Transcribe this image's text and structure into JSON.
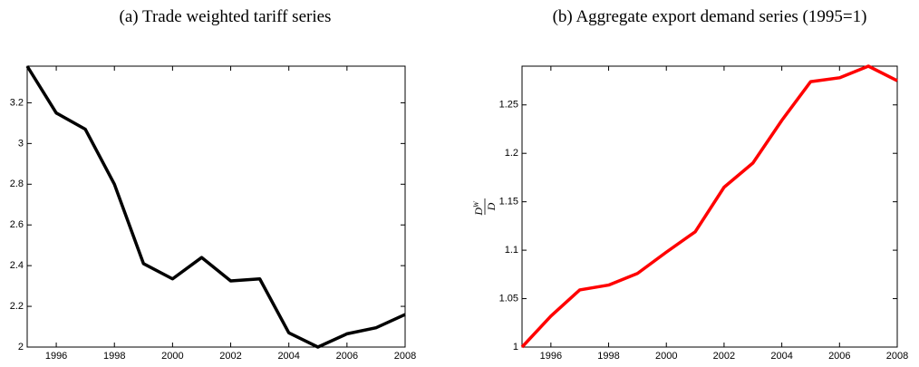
{
  "chart_data": [
    {
      "type": "line",
      "title": "(a) Trade weighted tariff series",
      "x": [
        1995,
        1996,
        1997,
        1998,
        1999,
        2000,
        2001,
        2002,
        2003,
        2004,
        2005,
        2006,
        2007,
        2008
      ],
      "series": [
        {
          "name": "Trade weighted tariff",
          "color": "#000000",
          "values": [
            3.38,
            3.15,
            3.07,
            2.8,
            2.41,
            2.335,
            2.44,
            2.325,
            2.335,
            2.07,
            2.0,
            2.065,
            2.095,
            2.16
          ]
        }
      ],
      "xlim": [
        1995,
        2008
      ],
      "xticks": [
        1996,
        1998,
        2000,
        2002,
        2004,
        2006,
        2008
      ],
      "ylim": [
        2,
        3.38
      ],
      "yticks": [
        2,
        2.2,
        2.4,
        2.6,
        2.8,
        3,
        3.2
      ],
      "grid": false
    },
    {
      "type": "line",
      "title": "(b) Aggregate export demand series (1995=1)",
      "ylabel_numerator": "D",
      "ylabel_superscript": "W",
      "ylabel_denominator": "D",
      "x": [
        1995,
        1996,
        1997,
        1998,
        1999,
        2000,
        2001,
        2002,
        2003,
        2004,
        2005,
        2006,
        2007,
        2008
      ],
      "series": [
        {
          "name": "Aggregate export demand",
          "color": "#ff0000",
          "values": [
            1.0,
            1.032,
            1.059,
            1.064,
            1.076,
            1.098,
            1.119,
            1.165,
            1.19,
            1.234,
            1.274,
            1.278,
            1.29,
            1.275
          ]
        }
      ],
      "xlim": [
        1995,
        2008
      ],
      "xticks": [
        1996,
        1998,
        2000,
        2002,
        2004,
        2006,
        2008
      ],
      "ylim": [
        1,
        1.29
      ],
      "yticks": [
        1,
        1.05,
        1.1,
        1.15,
        1.2,
        1.25
      ],
      "grid": false
    }
  ]
}
